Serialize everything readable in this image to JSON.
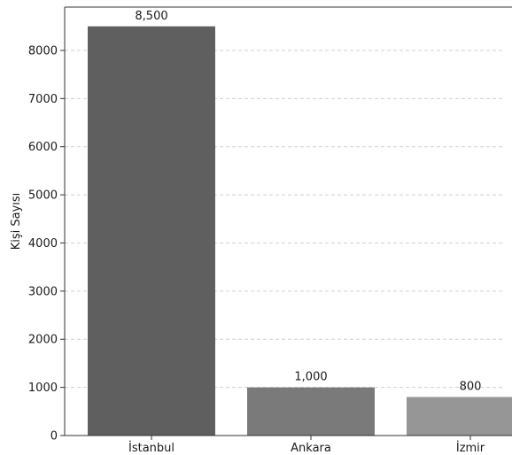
{
  "chart_data": {
    "type": "bar",
    "title": "",
    "xlabel": "",
    "ylabel": "Kişi Sayısı",
    "categories": [
      "İstanbul",
      "Ankara",
      "İzmir"
    ],
    "values": [
      8500,
      1000,
      800
    ],
    "value_labels": [
      "8,500",
      "1,000",
      "800"
    ],
    "bar_colors": [
      "#5f5f5f",
      "#7a7a7a",
      "#969696"
    ],
    "ylim": [
      0,
      8900
    ],
    "yticks": [
      0,
      1000,
      2000,
      3000,
      4000,
      5000,
      6000,
      7000,
      8000
    ],
    "grid": true,
    "grid_style": "dashed horizontal"
  }
}
